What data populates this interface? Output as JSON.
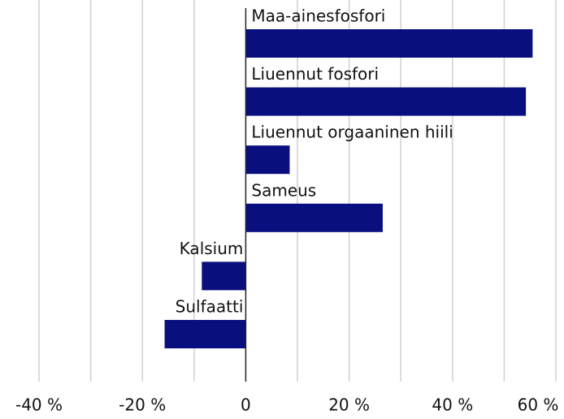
{
  "chart_data": {
    "type": "bar",
    "orientation": "horizontal",
    "categories": [
      "Maa-ainesfosfori",
      "Liuennut fosfori",
      "Liuennut orgaaninen hiili",
      "Sameus",
      "Kalsium",
      "Sulfaatti"
    ],
    "values": [
      55.5,
      54.2,
      8.5,
      26.5,
      -8.5,
      -15.7
    ],
    "color": "#0a0f80",
    "xlim": [
      -40,
      60
    ],
    "xticks": [
      {
        "value": -40,
        "label": "-40 %"
      },
      {
        "value": -20,
        "label": "-20 %"
      },
      0,
      {
        "value": 20,
        "label": "20 %"
      },
      {
        "value": 40,
        "label": "40 %"
      },
      {
        "value": 60,
        "label": "60 %"
      }
    ],
    "xgrid": [
      -40,
      -30,
      -20,
      -10,
      10,
      20,
      30,
      40,
      50,
      60
    ],
    "grid": true
  }
}
